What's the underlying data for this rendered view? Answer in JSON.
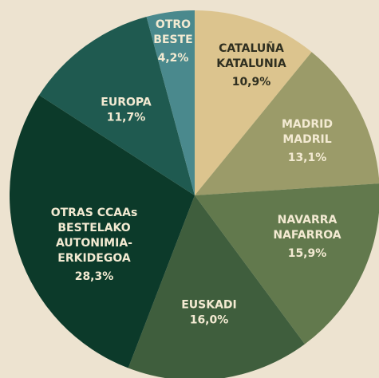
{
  "chart_data": {
    "type": "pie",
    "categories": [
      [
        "CATALUÑA",
        "KATALUNIA"
      ],
      [
        "MADRID",
        "MADRIL"
      ],
      [
        "NAVARRA",
        "NAFARROA"
      ],
      [
        "EUSKADI"
      ],
      [
        "OTRAS CCAAs",
        "BESTELAKO",
        "AUTONIMIA-",
        "ERKIDEGOA"
      ],
      [
        "EUROPA"
      ],
      [
        "OTRO",
        "BESTE"
      ]
    ],
    "values": [
      10.9,
      13.1,
      15.9,
      16.0,
      28.3,
      11.7,
      4.2
    ],
    "value_labels": [
      "10,9%",
      "13,1%",
      "15,9%",
      "16,0%",
      "28,3%",
      "11,7%",
      "4,2%"
    ],
    "colors": [
      "#dcc48e",
      "#9b9b69",
      "#62794d",
      "#3f5e3d",
      "#0c3a2a",
      "#1f5a50",
      "#4a898d"
    ]
  }
}
